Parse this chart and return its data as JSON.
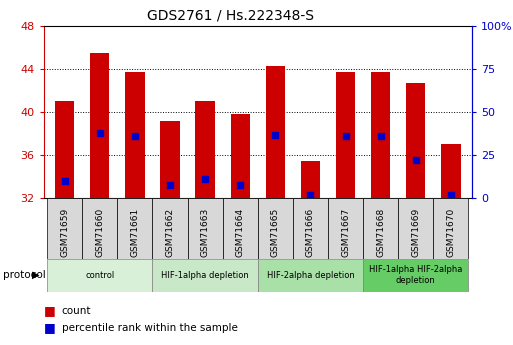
{
  "title": "GDS2761 / Hs.222348-S",
  "samples": [
    "GSM71659",
    "GSM71660",
    "GSM71661",
    "GSM71662",
    "GSM71663",
    "GSM71664",
    "GSM71665",
    "GSM71666",
    "GSM71667",
    "GSM71668",
    "GSM71669",
    "GSM71670"
  ],
  "counts": [
    41.0,
    45.5,
    43.7,
    39.2,
    41.0,
    39.8,
    44.3,
    35.5,
    43.7,
    43.7,
    42.7,
    37.0
  ],
  "percentiles": [
    10,
    38,
    36,
    8,
    11,
    8,
    37,
    2,
    36,
    36,
    22,
    2
  ],
  "ylim_left": [
    32,
    48
  ],
  "ylim_right": [
    0,
    100
  ],
  "yticks_left": [
    32,
    36,
    40,
    44,
    48
  ],
  "yticks_right": [
    0,
    25,
    50,
    75,
    100
  ],
  "bar_color": "#cc0000",
  "dot_color": "#0000cc",
  "bar_bottom": 32,
  "groups": [
    {
      "label": "control",
      "indices": [
        0,
        1,
        2
      ],
      "color": "#d8f0d8"
    },
    {
      "label": "HIF-1alpha depletion",
      "indices": [
        3,
        4,
        5
      ],
      "color": "#c8e8c8"
    },
    {
      "label": "HIF-2alpha depletion",
      "indices": [
        6,
        7,
        8
      ],
      "color": "#a8e0a8"
    },
    {
      "label": "HIF-1alpha HIF-2alpha\ndepletion",
      "indices": [
        9,
        10,
        11
      ],
      "color": "#66cc66"
    }
  ],
  "protocol_label": "protocol",
  "legend_count_label": "count",
  "legend_percentile_label": "percentile rank within the sample",
  "left_axis_color": "#cc0000",
  "right_axis_color": "#0000cc",
  "bar_width": 0.55,
  "figsize": [
    5.13,
    3.45
  ],
  "dpi": 100
}
